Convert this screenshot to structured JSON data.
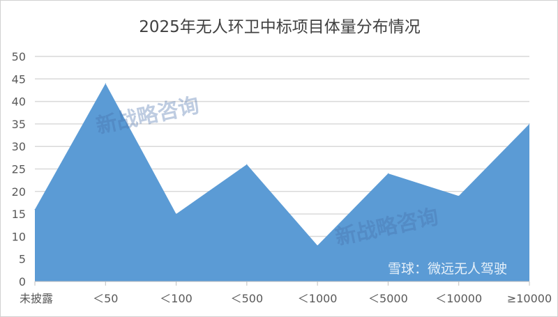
{
  "chart_data": {
    "type": "area",
    "title": "2025年无人环卫中标项目体量分布情况",
    "categories": [
      "未披露",
      "＜50",
      "＜100",
      "＜500",
      "＜1000",
      "＜5000",
      "＜10000",
      "≥10000"
    ],
    "values": [
      16,
      44,
      15,
      26,
      8,
      24,
      19,
      35
    ],
    "ylim": [
      0,
      50
    ],
    "yticks": [
      0,
      5,
      10,
      15,
      20,
      25,
      30,
      35,
      40,
      45,
      50
    ],
    "grid": true,
    "color": "#5b9bd5"
  },
  "watermarks": [
    "新战略咨询",
    "新战略咨询",
    "雪球：微远无人驾驶"
  ]
}
